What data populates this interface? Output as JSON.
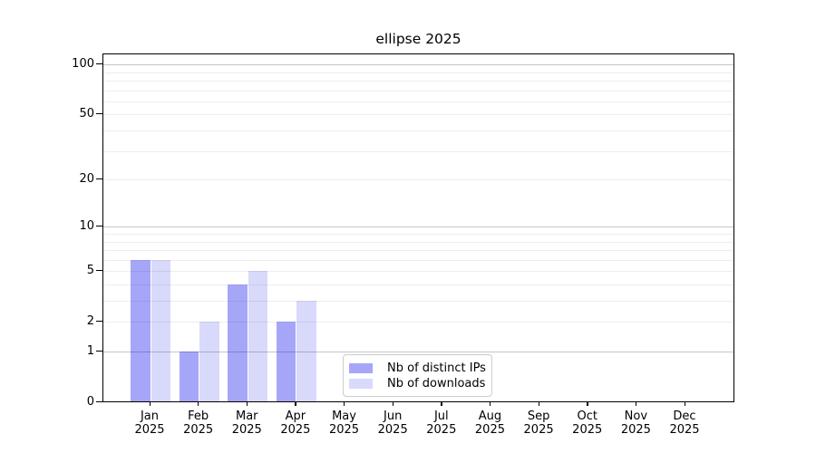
{
  "title": "ellipse 2025",
  "chart_data": {
    "type": "bar",
    "title": "ellipse 2025",
    "categories": [
      "Jan",
      "Feb",
      "Mar",
      "Apr",
      "May",
      "Jun",
      "Jul",
      "Aug",
      "Sep",
      "Oct",
      "Nov",
      "Dec"
    ],
    "x_tick_year": "2025",
    "series": [
      {
        "name": "Nb of distinct IPs",
        "color": "rgba(0,0,238,0.35)",
        "values": [
          6,
          1,
          4,
          2,
          0,
          0,
          0,
          0,
          0,
          0,
          0,
          0
        ]
      },
      {
        "name": "Nb of downloads",
        "color": "rgba(0,0,238,0.15)",
        "values": [
          6,
          2,
          5,
          3,
          0,
          0,
          0,
          0,
          0,
          0,
          0,
          0
        ]
      }
    ],
    "y_ticks": [
      0,
      1,
      2,
      5,
      10,
      20,
      50,
      100
    ],
    "y_major_gridlines": [
      1,
      10,
      100
    ],
    "y_minor_gridlines": [
      2,
      3,
      4,
      5,
      6,
      7,
      8,
      9,
      20,
      30,
      40,
      50,
      60,
      70,
      80,
      90
    ],
    "scale": "log1p",
    "ylim": [
      0,
      115
    ],
    "grid": "both",
    "legend_position": "lower-center-inside"
  },
  "colors": {
    "major_grid": "#c6c6c6",
    "minor_grid": "#ededed",
    "axis": "#000000",
    "bar_distinct_ips": "rgba(0,0,238,0.35)",
    "bar_downloads": "rgba(0,0,238,0.15)"
  }
}
